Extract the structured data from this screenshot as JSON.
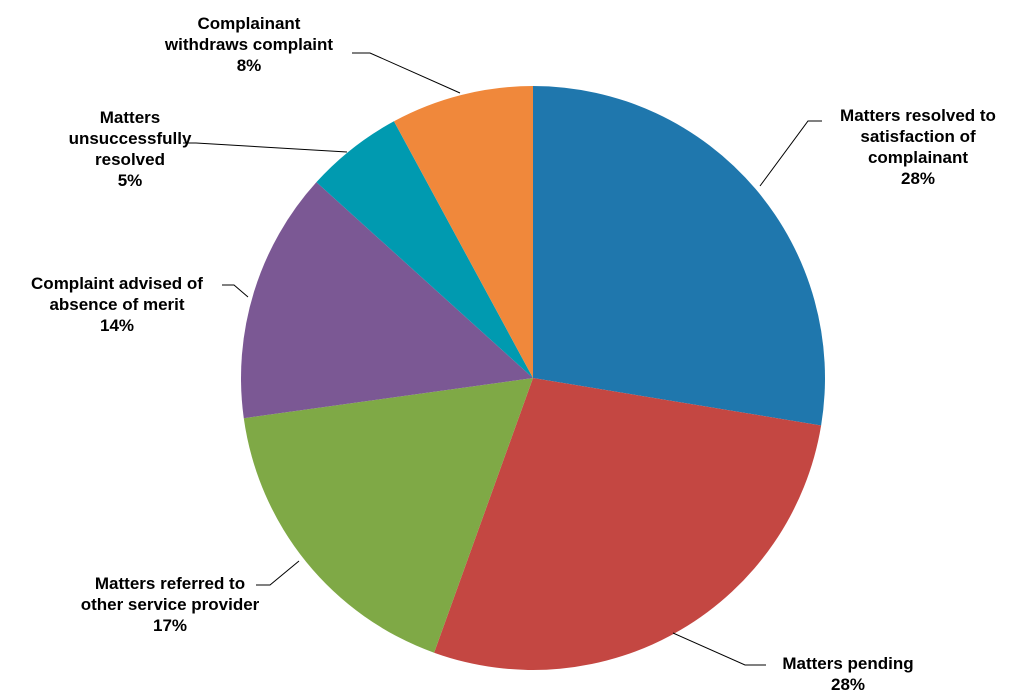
{
  "chart_data": {
    "type": "pie",
    "title": "",
    "unit": "%",
    "start_angle_deg": 0,
    "direction": "clockwise",
    "slices": [
      {
        "label_lines": [
          "Matters resolved to",
          "satisfaction of",
          "complainant"
        ],
        "value_text": "28%",
        "value": 27.6,
        "color": "#1F77AD"
      },
      {
        "label_lines": [
          "Matters pending"
        ],
        "value_text": "28%",
        "value": 27.9,
        "color": "#C44742"
      },
      {
        "label_lines": [
          "Matters referred to",
          "other service provider"
        ],
        "value_text": "17%",
        "value": 17.3,
        "color": "#7FA946"
      },
      {
        "label_lines": [
          "Complaint advised of",
          "absence of merit"
        ],
        "value_text": "14%",
        "value": 13.9,
        "color": "#7B5894"
      },
      {
        "label_lines": [
          "Matters",
          "unsuccessfully",
          "resolved"
        ],
        "value_text": "5%",
        "value": 5.4,
        "color": "#009AB0"
      },
      {
        "label_lines": [
          "Complainant",
          "withdraws complaint"
        ],
        "value_text": "8%",
        "value": 7.9,
        "color": "#F0883B"
      }
    ]
  }
}
